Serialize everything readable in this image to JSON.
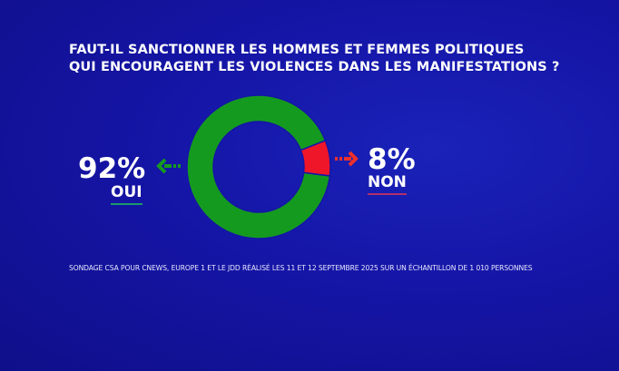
{
  "title": {
    "line1": "FAUT-IL SANCTIONNER LES HOMMES ET FEMMES POLITIQUES",
    "line2": "QUI ENCOURAGENT LES VIOLENCES DANS LES MANIFESTATIONS ?"
  },
  "chart_data": {
    "type": "pie",
    "donut": true,
    "slices": [
      {
        "name": "OUI",
        "value": 92,
        "label": "92%",
        "color": "#159a20"
      },
      {
        "name": "NON",
        "value": 8,
        "label": "8%",
        "color": "#f0162a"
      }
    ],
    "legend": "sides"
  },
  "colors": {
    "background": "#1515a6",
    "oui_underline": "#1a9a6a",
    "non_underline": "#b0306a"
  },
  "footer": "SONDAGE CSA POUR CNEWS, EUROPE 1 ET LE JDD RÉALISÉ LES 11 ET 12 SEPTEMBRE 2025 SUR UN ÉCHANTILLON DE 1 010 PERSONNES"
}
